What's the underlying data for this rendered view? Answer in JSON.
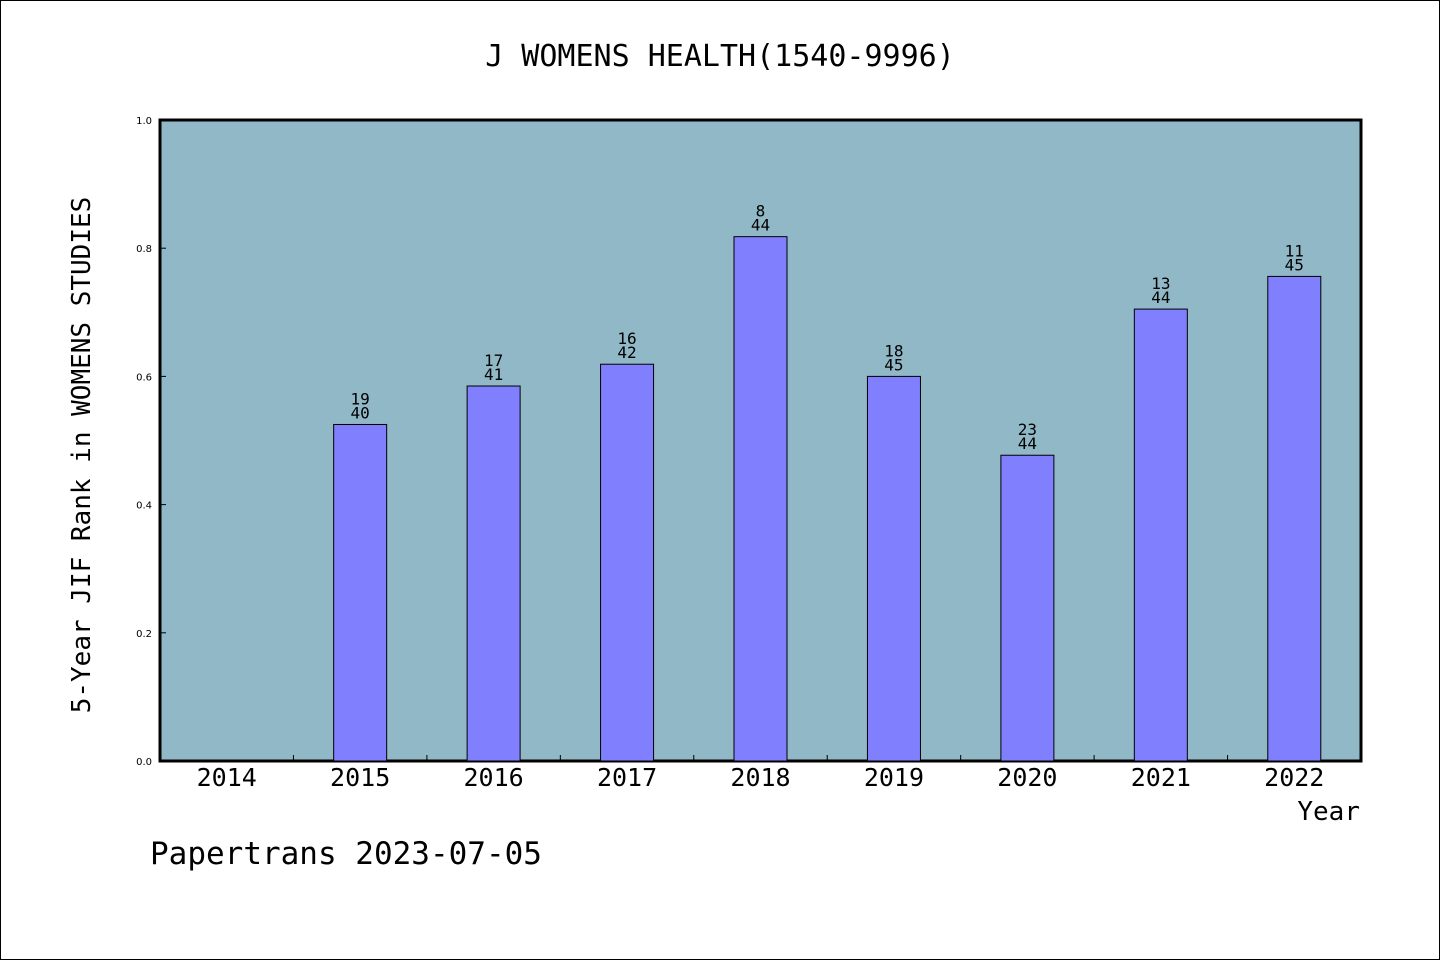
{
  "footer_text": "Papertrans 2023-07-05",
  "colors": {
    "plot_background": "#90b8c6",
    "bar_fill": "#8080ff",
    "bar_stroke": "#000000",
    "frame": "#000000"
  },
  "chart_data": {
    "type": "bar",
    "title": "J WOMENS HEALTH(1540-9996)",
    "xlabel": "Year",
    "ylabel": "5-Year JIF Rank in WOMENS STUDIES",
    "ylim": [
      0,
      1.0
    ],
    "yticks": [
      "0.0",
      "0.2",
      "0.4",
      "0.6",
      "0.8",
      "1.0"
    ],
    "grid": false,
    "legend": "none",
    "categories": [
      "2014",
      "2015",
      "2016",
      "2017",
      "2018",
      "2019",
      "2020",
      "2021",
      "2022"
    ],
    "values": [
      null,
      0.525,
      0.585,
      0.619,
      0.818,
      0.6,
      0.477,
      0.705,
      0.756
    ],
    "labels": [
      null,
      {
        "top": "19",
        "bottom": "40"
      },
      {
        "top": "17",
        "bottom": "41"
      },
      {
        "top": "16",
        "bottom": "42"
      },
      {
        "top": "8",
        "bottom": "44"
      },
      {
        "top": "18",
        "bottom": "45"
      },
      {
        "top": "23",
        "bottom": "44"
      },
      {
        "top": "13",
        "bottom": "44"
      },
      {
        "top": "11",
        "bottom": "45"
      }
    ]
  }
}
